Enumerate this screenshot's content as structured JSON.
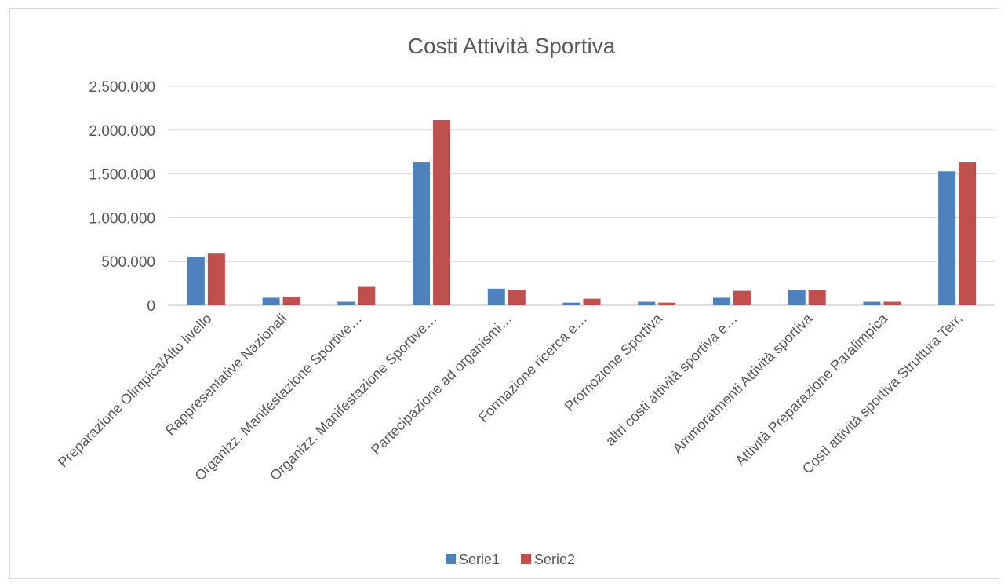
{
  "chart_data": {
    "type": "bar",
    "title": "Costi Attività Sportiva",
    "xlabel": "",
    "ylabel": "",
    "ylim": [
      0,
      2500000
    ],
    "yticks": [
      0,
      500000,
      1000000,
      1500000,
      2000000,
      2500000
    ],
    "ytick_labels": [
      "0",
      "500.000",
      "1.000.000",
      "1.500.000",
      "2.000.000",
      "2.500.000"
    ],
    "grid": true,
    "legend": "bottom",
    "categories": [
      "Preparazione Olimpica/Alto livello",
      "Rappresentative Nazionali",
      "Organizz. Manifestazione Sportive…",
      "Organizz. Manifestazione Sportive…",
      "Partecipazione ad organismi…",
      "Formazione ricerca e…",
      "Promozione Sportiva",
      "altri costi attività sportiva e…",
      "Ammoratmenti Attività sportiva",
      "Attività Preparazione Paralimpica",
      "Costi attività sportiva  Struttura Terr."
    ],
    "series": [
      {
        "name": "Serie1",
        "color": "#4f81bd",
        "values": [
          555000,
          85000,
          40000,
          1630000,
          190000,
          30000,
          40000,
          85000,
          175000,
          40000,
          1530000
        ]
      },
      {
        "name": "Serie2",
        "color": "#c0504d",
        "values": [
          590000,
          95000,
          210000,
          2115000,
          175000,
          75000,
          30000,
          165000,
          175000,
          40000,
          1630000
        ]
      }
    ]
  }
}
